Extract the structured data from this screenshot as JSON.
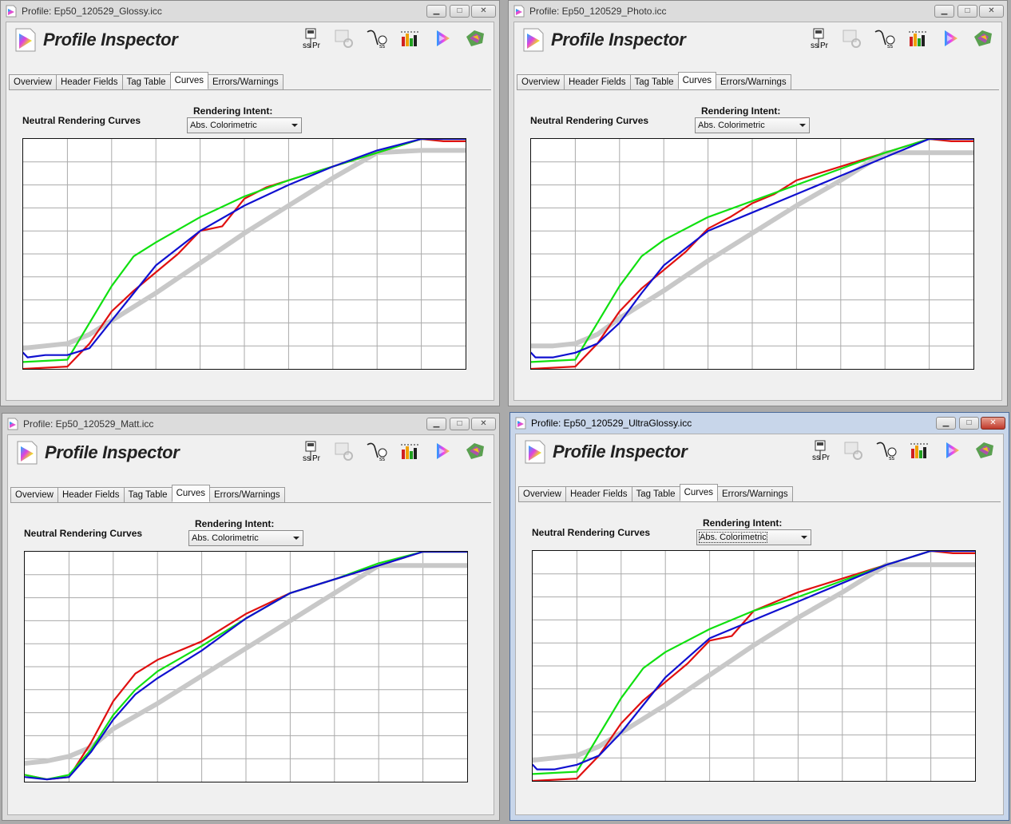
{
  "app_title": "Profile Inspector",
  "tabs": [
    "Overview",
    "Header Fields",
    "Tag Table",
    "Curves",
    "Errors/Warnings"
  ],
  "selected_tab": "Curves",
  "curves_label": "Neutral Rendering Curves",
  "intent_label": "Rendering Intent:",
  "intent_value": "Abs. Colorimetric",
  "window_buttons": {
    "minimize": "▁",
    "maximize": "□",
    "close": "✕"
  },
  "toolbar_icons": [
    "export-icon",
    "link-icon",
    "sticker-icon",
    "chart-icon",
    "triangle-icon",
    "gamut-icon"
  ],
  "colors": {
    "red": "#e01010",
    "green": "#10e010",
    "blue": "#1010d0",
    "gray": "#c8c8c8"
  },
  "windows": [
    {
      "title": "Profile: Ep50_120529_Glossy.icc",
      "active": false,
      "chart_data": {
        "type": "line",
        "xlim": [
          0,
          100
        ],
        "ylim": [
          0,
          100
        ],
        "grid": true,
        "series": [
          {
            "color": "gray",
            "x": [
              0,
              5,
              10,
              15,
              20,
              30,
              40,
              50,
              60,
              70,
              80,
              90,
              95,
              100
            ],
            "y": [
              9,
              10,
              11,
              15,
              21,
              33,
              46,
              59,
              71,
              83,
              94,
              95,
              95,
              95
            ]
          },
          {
            "color": "red",
            "x": [
              0,
              10,
              15,
              20,
              25,
              30,
              35,
              40,
              45,
              50,
              55,
              60,
              70,
              80,
              90,
              95,
              100
            ],
            "y": [
              0,
              1,
              11,
              25,
              34,
              42,
              50,
              60,
              62,
              74,
              79,
              82,
              88,
              94,
              100,
              99,
              99
            ]
          },
          {
            "color": "green",
            "x": [
              0,
              10,
              15,
              20,
              25,
              30,
              40,
              50,
              60,
              70,
              80,
              90,
              95,
              100
            ],
            "y": [
              3,
              4,
              20,
              36,
              49,
              55,
              66,
              75,
              82,
              88,
              94,
              100,
              100,
              100
            ]
          },
          {
            "color": "blue",
            "x": [
              0,
              1,
              5,
              10,
              15,
              20,
              25,
              30,
              40,
              50,
              60,
              70,
              80,
              90,
              95,
              100
            ],
            "y": [
              7,
              5,
              6,
              6,
              9,
              21,
              33,
              45,
              60,
              71,
              80,
              88,
              95,
              100,
              100,
              100
            ]
          }
        ]
      }
    },
    {
      "title": "Profile: Ep50_120529_Photo.icc",
      "active": false,
      "chart_data": {
        "type": "line",
        "xlim": [
          0,
          100
        ],
        "ylim": [
          0,
          100
        ],
        "grid": true,
        "series": [
          {
            "color": "gray",
            "x": [
              0,
              5,
              10,
              15,
              20,
              30,
              40,
              50,
              60,
              70,
              80,
              90,
              95,
              100
            ],
            "y": [
              10,
              10,
              11,
              15,
              22,
              34,
              47,
              59,
              71,
              82,
              94,
              94,
              94,
              94
            ]
          },
          {
            "color": "red",
            "x": [
              0,
              10,
              15,
              20,
              25,
              30,
              35,
              40,
              45,
              50,
              55,
              60,
              70,
              80,
              90,
              95,
              100
            ],
            "y": [
              0,
              1,
              11,
              25,
              35,
              43,
              51,
              61,
              66,
              72,
              76,
              82,
              88,
              94,
              100,
              99,
              99
            ]
          },
          {
            "color": "green",
            "x": [
              0,
              10,
              15,
              20,
              25,
              30,
              40,
              50,
              60,
              70,
              80,
              90,
              95,
              100
            ],
            "y": [
              3,
              4,
              20,
              36,
              49,
              56,
              66,
              73,
              80,
              87,
              94,
              100,
              100,
              100
            ]
          },
          {
            "color": "blue",
            "x": [
              0,
              1,
              5,
              10,
              15,
              20,
              25,
              30,
              40,
              50,
              60,
              70,
              80,
              90,
              95,
              100
            ],
            "y": [
              7,
              5,
              5,
              7,
              11,
              20,
              33,
              45,
              60,
              68,
              76,
              84,
              92,
              100,
              100,
              100
            ]
          }
        ]
      }
    },
    {
      "title": "Profile: Ep50_120529_Matt.icc",
      "active": false,
      "chart_data": {
        "type": "line",
        "xlim": [
          0,
          100
        ],
        "ylim": [
          0,
          100
        ],
        "grid": true,
        "series": [
          {
            "color": "gray",
            "x": [
              0,
              5,
              10,
              15,
              20,
              30,
              40,
              50,
              60,
              70,
              80,
              90,
              95,
              100
            ],
            "y": [
              8,
              9,
              11,
              15,
              23,
              34,
              46,
              58,
              70,
              82,
              94,
              94,
              94,
              94
            ]
          },
          {
            "color": "red",
            "x": [
              0,
              5,
              10,
              15,
              20,
              25,
              30,
              40,
              50,
              60,
              70,
              80,
              90,
              95,
              100
            ],
            "y": [
              3,
              1,
              2,
              17,
              35,
              47,
              53,
              61,
              73,
              82,
              88,
              94,
              100,
              100,
              100
            ]
          },
          {
            "color": "green",
            "x": [
              0,
              5,
              10,
              15,
              20,
              25,
              30,
              40,
              50,
              60,
              70,
              80,
              90,
              95,
              100
            ],
            "y": [
              3,
              1,
              3,
              14,
              29,
              40,
              48,
              59,
              71,
              82,
              88,
              95,
              100,
              100,
              100
            ]
          },
          {
            "color": "blue",
            "x": [
              0,
              5,
              10,
              15,
              20,
              25,
              30,
              40,
              50,
              60,
              70,
              80,
              90,
              95,
              100
            ],
            "y": [
              2,
              1,
              2,
              13,
              27,
              38,
              45,
              57,
              71,
              82,
              88,
              94,
              100,
              100,
              100
            ]
          }
        ]
      }
    },
    {
      "title": "Profile: Ep50_120529_UltraGlossy.icc",
      "active": true,
      "chart_data": {
        "type": "line",
        "xlim": [
          0,
          100
        ],
        "ylim": [
          0,
          100
        ],
        "grid": true,
        "series": [
          {
            "color": "gray",
            "x": [
              0,
              5,
              10,
              15,
              20,
              30,
              40,
              50,
              60,
              70,
              80,
              90,
              95,
              100
            ],
            "y": [
              9,
              10,
              11,
              15,
              21,
              33,
              46,
              59,
              71,
              82,
              94,
              94,
              94,
              94
            ]
          },
          {
            "color": "red",
            "x": [
              0,
              10,
              15,
              20,
              25,
              30,
              35,
              40,
              45,
              50,
              55,
              60,
              70,
              80,
              90,
              95,
              100
            ],
            "y": [
              0,
              1,
              11,
              25,
              35,
              43,
              51,
              61,
              63,
              74,
              78,
              82,
              88,
              94,
              100,
              99,
              99
            ]
          },
          {
            "color": "green",
            "x": [
              0,
              10,
              15,
              20,
              25,
              30,
              40,
              50,
              60,
              70,
              80,
              90,
              95,
              100
            ],
            "y": [
              3,
              4,
              20,
              36,
              49,
              56,
              66,
              74,
              80,
              87,
              94,
              100,
              100,
              100
            ]
          },
          {
            "color": "blue",
            "x": [
              0,
              1,
              5,
              10,
              15,
              20,
              25,
              30,
              40,
              50,
              60,
              70,
              80,
              90,
              95,
              100
            ],
            "y": [
              7,
              5,
              5,
              7,
              11,
              21,
              33,
              45,
              62,
              70,
              78,
              86,
              94,
              100,
              100,
              100
            ]
          }
        ]
      }
    }
  ]
}
